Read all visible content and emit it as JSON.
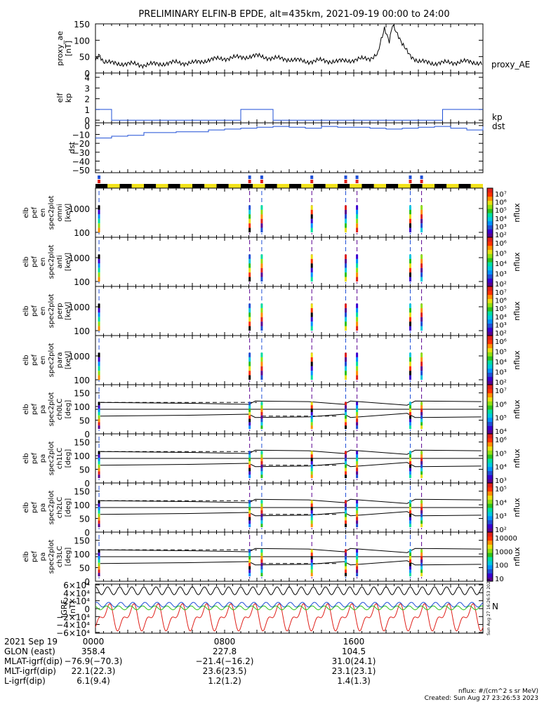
{
  "title": "PRELIMINARY ELFIN-B EPDE, alt=435km, 2021-09-19 00:00 to 24:00",
  "colors": {
    "blue": "#1f4fd6",
    "red": "#e0201a",
    "green": "#2ec21c",
    "yellow": "#f2e21a",
    "black": "#000000"
  },
  "panels": {
    "proxy_ae": {
      "ylabel": [
        "proxy_ae",
        "[nT]"
      ],
      "ticks": [
        "150",
        "100",
        "50",
        "0"
      ],
      "legend": "proxy_AE"
    },
    "kp": {
      "ylabel": [
        "elf",
        "kp"
      ],
      "ticks": [
        "4",
        "3",
        "2",
        "1",
        "0"
      ],
      "legend": "kp"
    },
    "dst": {
      "ylabel": [
        "dst"
      ],
      "ticks": [
        "0",
        "−10",
        "−20",
        "−30",
        "−40",
        "−50"
      ],
      "legend": "dst"
    },
    "spec_omni": {
      "ylabel": [
        "elb",
        "pef",
        "en",
        "spec2plot",
        "omni",
        "[keV]"
      ],
      "ticks": [
        "1000",
        "100"
      ]
    },
    "spec_anti": {
      "ylabel": [
        "elb",
        "pef",
        "en",
        "spec2plot",
        "anti",
        "[keV]"
      ],
      "ticks": [
        "1000",
        "100"
      ]
    },
    "spec_perp": {
      "ylabel": [
        "elb",
        "pef",
        "en",
        "spec2plot",
        "perp",
        "[keV]"
      ],
      "ticks": [
        "1000",
        "100"
      ]
    },
    "spec_para": {
      "ylabel": [
        "elb",
        "pef",
        "en",
        "spec2plot",
        "para",
        "[keV]"
      ],
      "ticks": [
        "1000",
        "100"
      ]
    },
    "pa_ch0": {
      "ylabel": [
        "elb",
        "pef",
        "pa",
        "spec2plot",
        "ch0LC",
        "[deg]"
      ],
      "ticks": [
        "150",
        "100",
        "50",
        "0"
      ]
    },
    "pa_ch1": {
      "ylabel": [
        "elb",
        "pef",
        "pa",
        "spec2plot",
        "ch1LC",
        "[deg]"
      ],
      "ticks": [
        "150",
        "100",
        "50",
        "0"
      ]
    },
    "pa_ch2": {
      "ylabel": [
        "elb",
        "pef",
        "pa",
        "spec2plot",
        "ch2LC",
        "[deg]"
      ],
      "ticks": [
        "150",
        "100",
        "50",
        "0"
      ]
    },
    "pa_ch3": {
      "ylabel": [
        "elb",
        "pef",
        "pa",
        "spec2plot",
        "ch3LC",
        "[deg]"
      ],
      "ticks": [
        "150",
        "100",
        "50",
        "0"
      ]
    },
    "bfield": {
      "ylabel": [
        "IGRF",
        "[nT]"
      ],
      "ticks": [
        "6×10⁴",
        "4×10⁴",
        "2×10⁴",
        "0",
        "−2×10⁴",
        "−4×10⁴",
        "−6×10⁴"
      ],
      "legend": "N"
    }
  },
  "colorbars": [
    {
      "label": "nflux",
      "ticks": [
        "10⁷",
        "10⁶",
        "10⁵",
        "10⁴",
        "10³",
        "10²"
      ]
    },
    {
      "label": "nflux",
      "ticks": [
        "10⁶",
        "10⁵",
        "10⁴",
        "10³",
        "10²"
      ]
    },
    {
      "label": "nflux",
      "ticks": [
        "10⁷",
        "10⁶",
        "10⁵",
        "10⁴",
        "10³",
        "10²"
      ]
    },
    {
      "label": "nflux",
      "ticks": [
        "10⁶",
        "10⁵",
        "10⁴",
        "10³",
        "10²"
      ]
    },
    {
      "label": "nflux",
      "ticks": [
        "10⁷",
        "10⁶",
        "10⁵",
        "10⁴"
      ]
    },
    {
      "label": "nflux",
      "ticks": [
        "10⁶",
        "10⁵",
        "10⁴",
        "10³"
      ]
    },
    {
      "label": "nflux",
      "ticks": [
        "10⁵",
        "10⁴",
        "10³",
        "10²"
      ]
    },
    {
      "label": "nflux",
      "ticks": [
        "10000",
        "1000",
        "100",
        "10"
      ]
    }
  ],
  "orbit_table": {
    "rows": [
      {
        "label": "2021 Sep 19",
        "values": [
          "0000",
          "0800",
          "1600"
        ]
      },
      {
        "label": "GLON (east)",
        "values": [
          "358.4",
          "227.8",
          "104.5"
        ]
      },
      {
        "label": "MLAT-igrf(dip)",
        "values": [
          "−76.9(−70.3)",
          "−21.4(−16.2)",
          "31.0(24.1)"
        ]
      },
      {
        "label": "MLT-igrf(dip)",
        "values": [
          "22.1(22.3)",
          "23.6(23.5)",
          "23.1(23.1)"
        ]
      },
      {
        "label": "L-igrf(dip)",
        "values": [
          "6.1(9.4)",
          "1.2(1.2)",
          "1.4(1.3)"
        ]
      }
    ]
  },
  "footer": {
    "units": "nflux: #/(cm^2 s sr MeV)",
    "created": "Created: Sun Aug 27 23:26:53 2023",
    "side_stamp": "Sun Aug 27 16:26:53 2023"
  },
  "chart_data": {
    "type": "line",
    "x_range_hours": [
      0,
      24
    ],
    "x_tick_labels": [
      "0000",
      "0800",
      "1600"
    ],
    "proxy_ae": {
      "x": [
        0,
        0.2,
        0.5,
        1,
        2,
        3,
        4,
        5,
        6,
        7,
        8,
        9,
        10,
        11,
        12,
        13,
        14,
        15,
        16,
        17,
        17.5,
        17.9,
        18.2,
        18.4,
        18.7,
        19,
        19.5,
        20,
        21,
        22,
        23,
        24
      ],
      "y": [
        38,
        60,
        35,
        30,
        28,
        25,
        28,
        32,
        30,
        40,
        45,
        48,
        52,
        45,
        42,
        35,
        38,
        35,
        40,
        45,
        60,
        140,
        100,
        145,
        115,
        85,
        55,
        35,
        30,
        32,
        35,
        30
      ],
      "ylim": [
        0,
        150
      ]
    },
    "kp": {
      "steps": [
        [
          0,
          1.0
        ],
        [
          1,
          0.0
        ],
        [
          9,
          1.0
        ],
        [
          11,
          0.0
        ],
        [
          21.5,
          1.0
        ],
        [
          24,
          1.0
        ]
      ],
      "ylim": [
        0,
        4
      ]
    },
    "dst": {
      "x": [
        0,
        1,
        2,
        3,
        4,
        5,
        6,
        7,
        8,
        9,
        10,
        11,
        12,
        13,
        14,
        15,
        16,
        17,
        18,
        19,
        20,
        21,
        22,
        23,
        24
      ],
      "y": [
        -14,
        -12,
        -11,
        -8,
        -8,
        -7,
        -7,
        -5,
        -4,
        -3,
        -2,
        -1,
        -2,
        -3,
        -1,
        -2,
        -2,
        -3,
        -4,
        -3,
        -2,
        -1,
        -3,
        -5,
        -1
      ],
      "ylim": [
        -53,
        3
      ]
    },
    "science_zones_hours": [
      0.22,
      9.55,
      10.3,
      13.4,
      15.5,
      16.2,
      19.5,
      20.2
    ],
    "pa_panels": {
      "ylim": [
        0,
        180
      ],
      "markers": [
        115,
        65
      ]
    },
    "bfield": {
      "ylim": [
        -60000,
        60000
      ],
      "n_oscillations": 32
    }
  }
}
